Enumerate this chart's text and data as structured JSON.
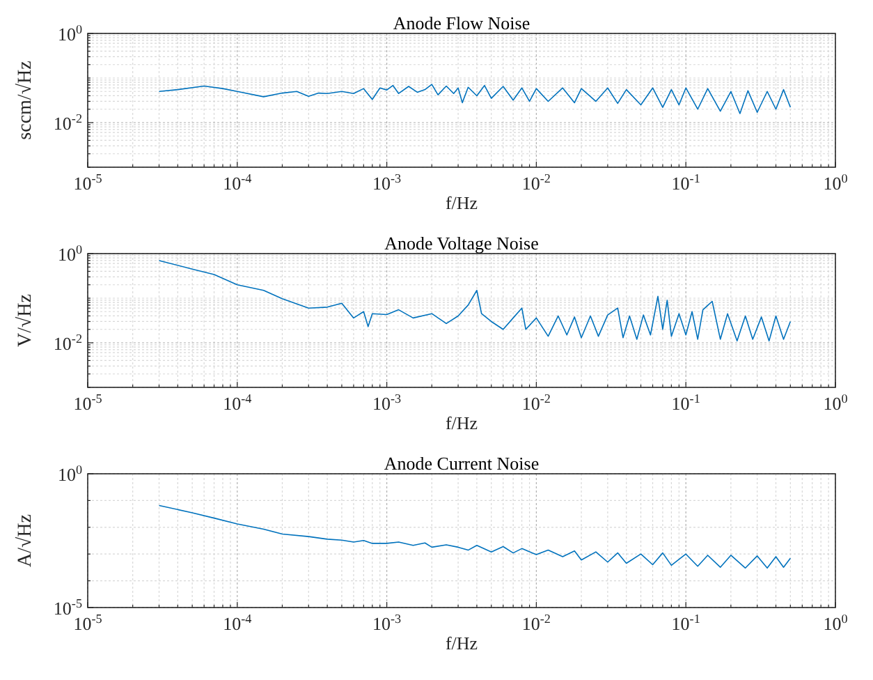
{
  "chart_data": [
    {
      "type": "line",
      "title": "Anode Flow Noise",
      "xlabel": "f/Hz",
      "ylabel": "sccm/√Hz",
      "log": "xy",
      "grid": true,
      "xlim": [
        1e-05,
        1
      ],
      "ylim": [
        0.001,
        1
      ],
      "xticks": [
        {
          "value": 1e-05,
          "label": "10$^{-5}$"
        },
        {
          "value": 2e-05,
          "label": null
        },
        {
          "value": 3e-05,
          "label": null
        },
        {
          "value": 4e-05,
          "label": null
        },
        {
          "value": 5e-05,
          "label": null
        },
        {
          "value": 6e-05,
          "label": null
        },
        {
          "value": 7e-05,
          "label": null
        },
        {
          "value": 8e-05,
          "label": null
        },
        {
          "value": 9e-05,
          "label": null
        },
        {
          "value": 0.0001,
          "label": "10$^{-4}$"
        },
        {
          "value": 0.0002,
          "label": null
        },
        {
          "value": 0.0003,
          "label": null
        },
        {
          "value": 0.0004,
          "label": null
        },
        {
          "value": 0.0005,
          "label": null
        },
        {
          "value": 0.0006,
          "label": null
        },
        {
          "value": 0.0007,
          "label": null
        },
        {
          "value": 0.0008,
          "label": null
        },
        {
          "value": 0.0009,
          "label": null
        },
        {
          "value": 0.001,
          "label": "10$^{-3}$"
        },
        {
          "value": 0.002,
          "label": null
        },
        {
          "value": 0.003,
          "label": null
        },
        {
          "value": 0.004,
          "label": null
        },
        {
          "value": 0.005,
          "label": null
        },
        {
          "value": 0.006,
          "label": null
        },
        {
          "value": 0.007,
          "label": null
        },
        {
          "value": 0.008,
          "label": null
        },
        {
          "value": 0.009,
          "label": null
        },
        {
          "value": 0.01,
          "label": "10$^{-2}$"
        },
        {
          "value": 0.02,
          "label": null
        },
        {
          "value": 0.03,
          "label": null
        },
        {
          "value": 0.04,
          "label": null
        },
        {
          "value": 0.05,
          "label": null
        },
        {
          "value": 0.06,
          "label": null
        },
        {
          "value": 0.07,
          "label": null
        },
        {
          "value": 0.08,
          "label": null
        },
        {
          "value": 0.09,
          "label": null
        },
        {
          "value": 0.1,
          "label": "10$^{-1}$"
        },
        {
          "value": 0.2,
          "label": null
        },
        {
          "value": 0.3,
          "label": null
        },
        {
          "value": 0.4,
          "label": null
        },
        {
          "value": 0.5,
          "label": null
        },
        {
          "value": 0.6,
          "label": null
        },
        {
          "value": 0.7,
          "label": null
        },
        {
          "value": 0.8,
          "label": null
        },
        {
          "value": 0.9,
          "label": null
        },
        {
          "value": 1,
          "label": "10$^{0}$"
        }
      ],
      "yticks": [
        {
          "value": 0.001,
          "label": null
        },
        {
          "value": 0.002,
          "label": null
        },
        {
          "value": 0.003,
          "label": null
        },
        {
          "value": 0.004,
          "label": null
        },
        {
          "value": 0.005,
          "label": null
        },
        {
          "value": 0.006,
          "label": null
        },
        {
          "value": 0.007,
          "label": null
        },
        {
          "value": 0.008,
          "label": null
        },
        {
          "value": 0.009,
          "label": null
        },
        {
          "value": 0.01,
          "label": "10$^{-2}$"
        },
        {
          "value": 0.02,
          "label": null
        },
        {
          "value": 0.03,
          "label": null
        },
        {
          "value": 0.04,
          "label": null
        },
        {
          "value": 0.05,
          "label": null
        },
        {
          "value": 0.06,
          "label": null
        },
        {
          "value": 0.07,
          "label": null
        },
        {
          "value": 0.08,
          "label": null
        },
        {
          "value": 0.09,
          "label": null
        },
        {
          "value": 0.1,
          "label": null
        },
        {
          "value": 0.2,
          "label": null
        },
        {
          "value": 0.3,
          "label": null
        },
        {
          "value": 0.4,
          "label": null
        },
        {
          "value": 0.5,
          "label": null
        },
        {
          "value": 0.6,
          "label": null
        },
        {
          "value": 0.7,
          "label": null
        },
        {
          "value": 0.8,
          "label": null
        },
        {
          "value": 0.9,
          "label": null
        },
        {
          "value": 1,
          "label": "10$^{0}$"
        }
      ],
      "series": [
        {
          "color": "#0072bd",
          "x": [
            3e-05,
            4e-05,
            6e-05,
            8e-05,
            0.0001,
            0.00015,
            0.0002,
            0.00025,
            0.0003,
            0.00035,
            0.0004,
            0.0005,
            0.0006,
            0.0007,
            0.0008,
            0.0009,
            0.001,
            0.0011,
            0.0012,
            0.0014,
            0.0016,
            0.0018,
            0.002,
            0.0022,
            0.0025,
            0.0028,
            0.003,
            0.0032,
            0.0035,
            0.004,
            0.0045,
            0.005,
            0.006,
            0.007,
            0.008,
            0.009,
            0.01,
            0.012,
            0.015,
            0.018,
            0.02,
            0.025,
            0.03,
            0.035,
            0.04,
            0.05,
            0.06,
            0.07,
            0.08,
            0.09,
            0.1,
            0.12,
            0.14,
            0.17,
            0.2,
            0.23,
            0.26,
            0.3,
            0.35,
            0.4,
            0.45,
            0.5
          ],
          "values": [
            0.05,
            0.055,
            0.066,
            0.058,
            0.05,
            0.038,
            0.046,
            0.05,
            0.039,
            0.046,
            0.045,
            0.05,
            0.045,
            0.058,
            0.033,
            0.06,
            0.054,
            0.068,
            0.045,
            0.065,
            0.048,
            0.055,
            0.072,
            0.042,
            0.066,
            0.045,
            0.06,
            0.028,
            0.062,
            0.04,
            0.068,
            0.035,
            0.065,
            0.032,
            0.06,
            0.03,
            0.058,
            0.03,
            0.06,
            0.028,
            0.058,
            0.03,
            0.06,
            0.027,
            0.055,
            0.025,
            0.06,
            0.022,
            0.055,
            0.025,
            0.06,
            0.02,
            0.058,
            0.018,
            0.05,
            0.016,
            0.052,
            0.017,
            0.05,
            0.02,
            0.055,
            0.022
          ]
        }
      ]
    },
    {
      "type": "line",
      "title": "Anode Voltage Noise",
      "xlabel": "f/Hz",
      "ylabel": "V/√Hz",
      "log": "xy",
      "grid": true,
      "xlim": [
        1e-05,
        1
      ],
      "ylim": [
        0.001,
        1
      ],
      "xticks": [
        {
          "value": 1e-05,
          "label": "10$^{-5}$"
        },
        {
          "value": 2e-05,
          "label": null
        },
        {
          "value": 3e-05,
          "label": null
        },
        {
          "value": 4e-05,
          "label": null
        },
        {
          "value": 5e-05,
          "label": null
        },
        {
          "value": 6e-05,
          "label": null
        },
        {
          "value": 7e-05,
          "label": null
        },
        {
          "value": 8e-05,
          "label": null
        },
        {
          "value": 9e-05,
          "label": null
        },
        {
          "value": 0.0001,
          "label": "10$^{-4}$"
        },
        {
          "value": 0.0002,
          "label": null
        },
        {
          "value": 0.0003,
          "label": null
        },
        {
          "value": 0.0004,
          "label": null
        },
        {
          "value": 0.0005,
          "label": null
        },
        {
          "value": 0.0006,
          "label": null
        },
        {
          "value": 0.0007,
          "label": null
        },
        {
          "value": 0.0008,
          "label": null
        },
        {
          "value": 0.0009,
          "label": null
        },
        {
          "value": 0.001,
          "label": "10$^{-3}$"
        },
        {
          "value": 0.002,
          "label": null
        },
        {
          "value": 0.003,
          "label": null
        },
        {
          "value": 0.004,
          "label": null
        },
        {
          "value": 0.005,
          "label": null
        },
        {
          "value": 0.006,
          "label": null
        },
        {
          "value": 0.007,
          "label": null
        },
        {
          "value": 0.008,
          "label": null
        },
        {
          "value": 0.009,
          "label": null
        },
        {
          "value": 0.01,
          "label": "10$^{-2}$"
        },
        {
          "value": 0.02,
          "label": null
        },
        {
          "value": 0.03,
          "label": null
        },
        {
          "value": 0.04,
          "label": null
        },
        {
          "value": 0.05,
          "label": null
        },
        {
          "value": 0.06,
          "label": null
        },
        {
          "value": 0.07,
          "label": null
        },
        {
          "value": 0.08,
          "label": null
        },
        {
          "value": 0.09,
          "label": null
        },
        {
          "value": 0.1,
          "label": "10$^{-1}$"
        },
        {
          "value": 0.2,
          "label": null
        },
        {
          "value": 0.3,
          "label": null
        },
        {
          "value": 0.4,
          "label": null
        },
        {
          "value": 0.5,
          "label": null
        },
        {
          "value": 0.6,
          "label": null
        },
        {
          "value": 0.7,
          "label": null
        },
        {
          "value": 0.8,
          "label": null
        },
        {
          "value": 0.9,
          "label": null
        },
        {
          "value": 1,
          "label": "10$^{0}$"
        }
      ],
      "yticks": [
        {
          "value": 0.001,
          "label": null
        },
        {
          "value": 0.002,
          "label": null
        },
        {
          "value": 0.003,
          "label": null
        },
        {
          "value": 0.004,
          "label": null
        },
        {
          "value": 0.005,
          "label": null
        },
        {
          "value": 0.006,
          "label": null
        },
        {
          "value": 0.007,
          "label": null
        },
        {
          "value": 0.008,
          "label": null
        },
        {
          "value": 0.009,
          "label": null
        },
        {
          "value": 0.01,
          "label": "10$^{-2}$"
        },
        {
          "value": 0.02,
          "label": null
        },
        {
          "value": 0.03,
          "label": null
        },
        {
          "value": 0.04,
          "label": null
        },
        {
          "value": 0.05,
          "label": null
        },
        {
          "value": 0.06,
          "label": null
        },
        {
          "value": 0.07,
          "label": null
        },
        {
          "value": 0.08,
          "label": null
        },
        {
          "value": 0.09,
          "label": null
        },
        {
          "value": 0.1,
          "label": null
        },
        {
          "value": 0.2,
          "label": null
        },
        {
          "value": 0.3,
          "label": null
        },
        {
          "value": 0.4,
          "label": null
        },
        {
          "value": 0.5,
          "label": null
        },
        {
          "value": 0.6,
          "label": null
        },
        {
          "value": 0.7,
          "label": null
        },
        {
          "value": 0.8,
          "label": null
        },
        {
          "value": 0.9,
          "label": null
        },
        {
          "value": 1,
          "label": "10$^{0}$"
        }
      ],
      "series": [
        {
          "color": "#0072bd",
          "x": [
            3e-05,
            5e-05,
            7e-05,
            0.0001,
            0.00015,
            0.0002,
            0.0003,
            0.0004,
            0.0005,
            0.0006,
            0.0007,
            0.00075,
            0.0008,
            0.001,
            0.0012,
            0.0015,
            0.002,
            0.0025,
            0.003,
            0.0035,
            0.004,
            0.0043,
            0.005,
            0.006,
            0.007,
            0.008,
            0.0085,
            0.01,
            0.012,
            0.014,
            0.016,
            0.018,
            0.02,
            0.023,
            0.026,
            0.03,
            0.035,
            0.038,
            0.042,
            0.047,
            0.052,
            0.058,
            0.065,
            0.07,
            0.075,
            0.08,
            0.09,
            0.1,
            0.11,
            0.12,
            0.13,
            0.15,
            0.17,
            0.19,
            0.22,
            0.25,
            0.28,
            0.32,
            0.36,
            0.4,
            0.45,
            0.5
          ],
          "values": [
            0.7,
            0.45,
            0.34,
            0.2,
            0.15,
            0.097,
            0.06,
            0.063,
            0.077,
            0.036,
            0.05,
            0.023,
            0.045,
            0.043,
            0.055,
            0.036,
            0.045,
            0.027,
            0.04,
            0.07,
            0.15,
            0.045,
            0.03,
            0.02,
            0.036,
            0.06,
            0.02,
            0.036,
            0.014,
            0.04,
            0.015,
            0.038,
            0.013,
            0.04,
            0.014,
            0.042,
            0.06,
            0.013,
            0.04,
            0.012,
            0.042,
            0.015,
            0.11,
            0.02,
            0.09,
            0.014,
            0.045,
            0.015,
            0.05,
            0.012,
            0.055,
            0.085,
            0.012,
            0.045,
            0.011,
            0.04,
            0.012,
            0.038,
            0.011,
            0.04,
            0.012,
            0.03
          ]
        }
      ]
    },
    {
      "type": "line",
      "title": "Anode Current Noise",
      "xlabel": "f/Hz",
      "ylabel": "A/√Hz",
      "log": "xy",
      "grid": true,
      "xlim": [
        1e-05,
        1
      ],
      "ylim": [
        1e-05,
        1
      ],
      "xticks": [
        {
          "value": 1e-05,
          "label": "10$^{-5}$"
        },
        {
          "value": 2e-05,
          "label": null
        },
        {
          "value": 3e-05,
          "label": null
        },
        {
          "value": 4e-05,
          "label": null
        },
        {
          "value": 5e-05,
          "label": null
        },
        {
          "value": 6e-05,
          "label": null
        },
        {
          "value": 7e-05,
          "label": null
        },
        {
          "value": 8e-05,
          "label": null
        },
        {
          "value": 9e-05,
          "label": null
        },
        {
          "value": 0.0001,
          "label": "10$^{-4}$"
        },
        {
          "value": 0.0002,
          "label": null
        },
        {
          "value": 0.0003,
          "label": null
        },
        {
          "value": 0.0004,
          "label": null
        },
        {
          "value": 0.0005,
          "label": null
        },
        {
          "value": 0.0006,
          "label": null
        },
        {
          "value": 0.0007,
          "label": null
        },
        {
          "value": 0.0008,
          "label": null
        },
        {
          "value": 0.0009,
          "label": null
        },
        {
          "value": 0.001,
          "label": "10$^{-3}$"
        },
        {
          "value": 0.002,
          "label": null
        },
        {
          "value": 0.003,
          "label": null
        },
        {
          "value": 0.004,
          "label": null
        },
        {
          "value": 0.005,
          "label": null
        },
        {
          "value": 0.006,
          "label": null
        },
        {
          "value": 0.007,
          "label": null
        },
        {
          "value": 0.008,
          "label": null
        },
        {
          "value": 0.009,
          "label": null
        },
        {
          "value": 0.01,
          "label": "10$^{-2}$"
        },
        {
          "value": 0.02,
          "label": null
        },
        {
          "value": 0.03,
          "label": null
        },
        {
          "value": 0.04,
          "label": null
        },
        {
          "value": 0.05,
          "label": null
        },
        {
          "value": 0.06,
          "label": null
        },
        {
          "value": 0.07,
          "label": null
        },
        {
          "value": 0.08,
          "label": null
        },
        {
          "value": 0.09,
          "label": null
        },
        {
          "value": 0.1,
          "label": "10$^{-1}$"
        },
        {
          "value": 0.2,
          "label": null
        },
        {
          "value": 0.3,
          "label": null
        },
        {
          "value": 0.4,
          "label": null
        },
        {
          "value": 0.5,
          "label": null
        },
        {
          "value": 0.6,
          "label": null
        },
        {
          "value": 0.7,
          "label": null
        },
        {
          "value": 0.8,
          "label": null
        },
        {
          "value": 0.9,
          "label": null
        },
        {
          "value": 1,
          "label": "10$^{0}$"
        }
      ],
      "yticks": [
        {
          "value": 1e-05,
          "label": "10$^{-5}$"
        },
        {
          "value": 0.0001,
          "label": null
        },
        {
          "value": 0.001,
          "label": null
        },
        {
          "value": 0.01,
          "label": null
        },
        {
          "value": 0.1,
          "label": null
        },
        {
          "value": 1,
          "label": "10$^{0}$"
        }
      ],
      "series": [
        {
          "color": "#0072bd",
          "x": [
            3e-05,
            5e-05,
            7e-05,
            0.0001,
            0.00015,
            0.0002,
            0.0003,
            0.0004,
            0.0005,
            0.0006,
            0.0007,
            0.0008,
            0.001,
            0.0012,
            0.0015,
            0.0018,
            0.002,
            0.0025,
            0.003,
            0.0035,
            0.004,
            0.005,
            0.006,
            0.007,
            0.008,
            0.01,
            0.012,
            0.015,
            0.018,
            0.02,
            0.025,
            0.03,
            0.035,
            0.04,
            0.05,
            0.06,
            0.07,
            0.08,
            0.1,
            0.12,
            0.14,
            0.17,
            0.2,
            0.25,
            0.3,
            0.35,
            0.4,
            0.45,
            0.5
          ],
          "values": [
            0.065,
            0.035,
            0.022,
            0.0133,
            0.0085,
            0.0056,
            0.0045,
            0.0036,
            0.0033,
            0.0028,
            0.0032,
            0.0025,
            0.0025,
            0.0028,
            0.0021,
            0.0026,
            0.0018,
            0.0022,
            0.0018,
            0.0014,
            0.0021,
            0.0012,
            0.0019,
            0.0011,
            0.0016,
            0.00095,
            0.0014,
            0.0008,
            0.0013,
            0.0006,
            0.0012,
            0.0005,
            0.0011,
            0.00045,
            0.001,
            0.0004,
            0.0011,
            0.00038,
            0.001,
            0.00035,
            0.0009,
            0.00032,
            0.0009,
            0.0003,
            0.00085,
            0.0003,
            0.0008,
            0.00032,
            0.0007
          ]
        }
      ]
    }
  ]
}
